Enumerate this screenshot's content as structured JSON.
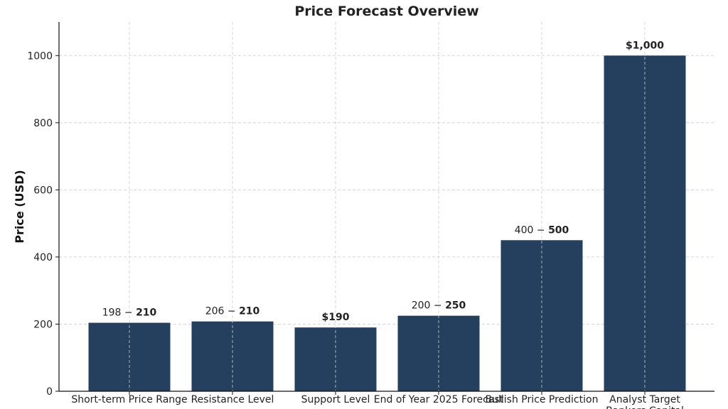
{
  "chart_data": {
    "type": "bar",
    "title": "Price Forecast Overview",
    "ylabel": "Price (USD)",
    "xlabel": "",
    "ylim": [
      0,
      1100
    ],
    "yticks": [
      "0",
      "200",
      "400",
      "600",
      "800",
      "1000"
    ],
    "grid": true,
    "bar_color": "#253f5e",
    "categories": [
      "Short-term Price Range",
      "Resistance Level",
      "Support Level",
      "End of Year 2025 Forecast",
      "Bullish Price Prediction",
      "Analyst Target Bankers Capital"
    ],
    "values": [
      204,
      208,
      190,
      225,
      450,
      1000
    ],
    "data_labels": [
      {
        "regular": "198 − ",
        "bold": "210"
      },
      {
        "regular": "206 − ",
        "bold": "210"
      },
      {
        "regular": "",
        "bold": "$190"
      },
      {
        "regular": "200 − ",
        "bold": "250"
      },
      {
        "regular": "400 − ",
        "bold": "500"
      },
      {
        "regular": "",
        "bold": "$1,000"
      }
    ]
  }
}
